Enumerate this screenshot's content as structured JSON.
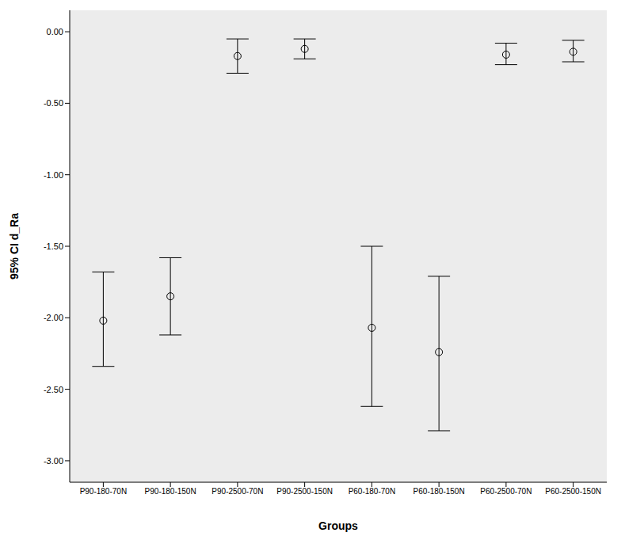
{
  "chart_data": {
    "type": "scatter",
    "x_label": "Groups",
    "y_label": "95% CI d_Ra",
    "categories": [
      "P90-180-70N",
      "P90-180-150N",
      "P90-2500-70N",
      "P90-2500-150N",
      "P60-180-70N",
      "P60-180-150N",
      "P60-2500-70N",
      "P60-2500-150N"
    ],
    "values": [
      -2.02,
      -1.85,
      -0.17,
      -0.12,
      -2.07,
      -2.24,
      -0.16,
      -0.14
    ],
    "ci_lower": [
      -2.34,
      -2.12,
      -0.29,
      -0.19,
      -2.62,
      -2.79,
      -0.23,
      -0.21
    ],
    "ci_upper": [
      -1.68,
      -1.58,
      -0.05,
      -0.05,
      -1.5,
      -1.71,
      -0.08,
      -0.06
    ],
    "color": "#000000",
    "marker": "circle",
    "grid": false,
    "ylim": [
      -3.15,
      0.15
    ],
    "yticks": [
      {
        "value": 0,
        "label": "0.00"
      },
      {
        "value": -0.5,
        "label": "-0.50"
      },
      {
        "value": -1,
        "label": "-1.00"
      },
      {
        "value": -1.5,
        "label": "-1.50"
      },
      {
        "value": -2,
        "label": "-2.00"
      },
      {
        "value": -2.5,
        "label": "-2.50"
      },
      {
        "value": -3,
        "label": "-3.00"
      }
    ]
  }
}
